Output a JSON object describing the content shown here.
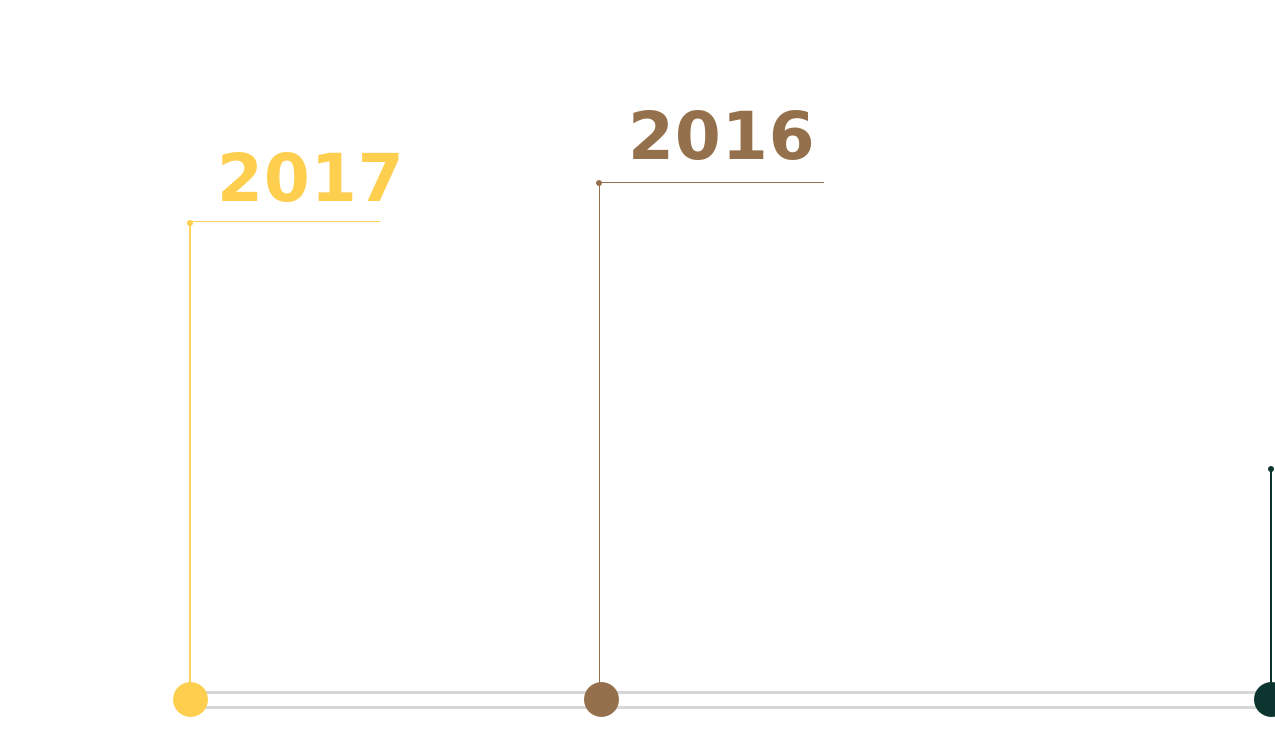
{
  "timeline": {
    "entries": [
      {
        "year": "2017",
        "color": "#fecf4e"
      },
      {
        "year": "2016",
        "color": "#94714c"
      },
      {
        "year": "",
        "color": "#0c3530"
      }
    ],
    "track_color": "#d7d7d7"
  }
}
